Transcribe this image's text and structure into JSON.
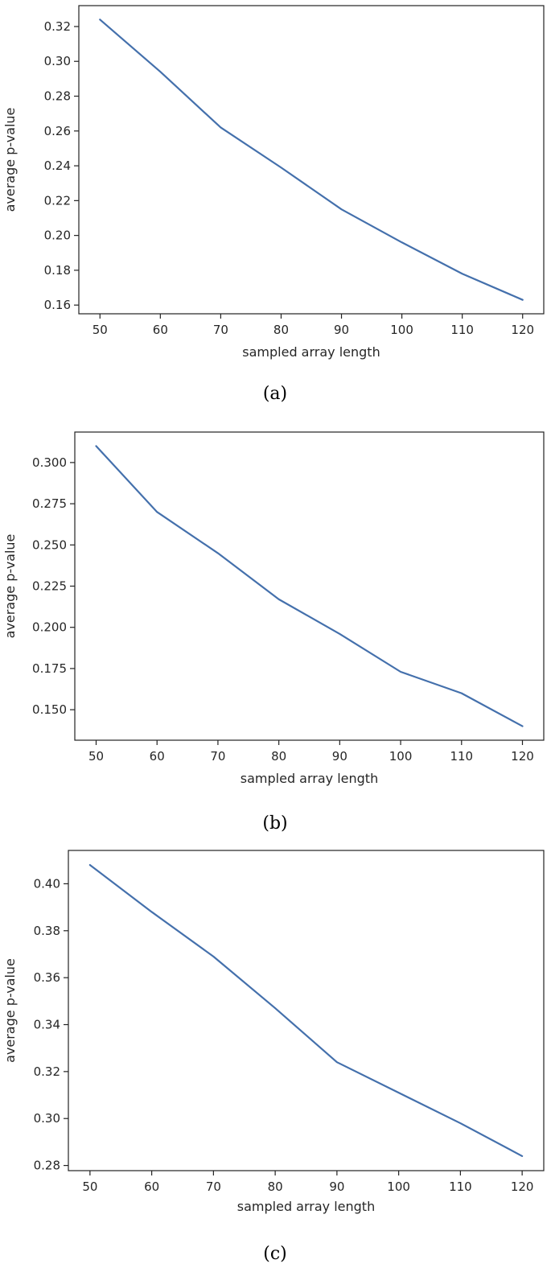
{
  "chart_data": [
    {
      "type": "line",
      "caption": "(a)",
      "xlabel": "sampled array length",
      "ylabel": "average p-value",
      "x": [
        50,
        60,
        70,
        80,
        90,
        100,
        110,
        120
      ],
      "series": [
        {
          "values": [
            0.324,
            0.294,
            0.262,
            0.239,
            0.215,
            0.196,
            0.178,
            0.163
          ]
        }
      ],
      "xticks": [
        50,
        60,
        70,
        80,
        90,
        100,
        110,
        120
      ],
      "yticks": [
        0.16,
        0.18,
        0.2,
        0.22,
        0.24,
        0.26,
        0.28,
        0.3,
        0.32
      ],
      "ytick_labels": [
        "0.16",
        "0.18",
        "0.20",
        "0.22",
        "0.24",
        "0.26",
        "0.28",
        "0.30",
        "0.32"
      ],
      "xlim": [
        46.5,
        123.5
      ],
      "ylim": [
        0.155,
        0.332
      ],
      "grid": false,
      "color": "#4470ac"
    },
    {
      "type": "line",
      "caption": "(b)",
      "xlabel": "sampled array length",
      "ylabel": "average p-value",
      "x": [
        50,
        60,
        70,
        80,
        90,
        100,
        110,
        120
      ],
      "series": [
        {
          "values": [
            0.31,
            0.27,
            0.245,
            0.217,
            0.196,
            0.173,
            0.16,
            0.14
          ]
        }
      ],
      "xticks": [
        50,
        60,
        70,
        80,
        90,
        100,
        110,
        120
      ],
      "yticks": [
        0.15,
        0.175,
        0.2,
        0.225,
        0.25,
        0.275,
        0.3
      ],
      "ytick_labels": [
        "0.150",
        "0.175",
        "0.200",
        "0.225",
        "0.250",
        "0.275",
        "0.300"
      ],
      "xlim": [
        46.5,
        123.5
      ],
      "ylim": [
        0.1315,
        0.3185
      ],
      "grid": false,
      "color": "#4470ac"
    },
    {
      "type": "line",
      "caption": "(c)",
      "xlabel": "sampled array length",
      "ylabel": "average p-value",
      "x": [
        50,
        60,
        70,
        80,
        90,
        100,
        110,
        120
      ],
      "series": [
        {
          "values": [
            0.408,
            0.388,
            0.369,
            0.347,
            0.324,
            0.311,
            0.298,
            0.284
          ]
        }
      ],
      "xticks": [
        50,
        60,
        70,
        80,
        90,
        100,
        110,
        120
      ],
      "yticks": [
        0.28,
        0.3,
        0.32,
        0.34,
        0.36,
        0.38,
        0.4
      ],
      "ytick_labels": [
        "0.28",
        "0.30",
        "0.32",
        "0.34",
        "0.36",
        "0.38",
        "0.40"
      ],
      "xlim": [
        46.5,
        123.5
      ],
      "ylim": [
        0.2778,
        0.4142
      ],
      "grid": false,
      "color": "#4470ac"
    }
  ]
}
